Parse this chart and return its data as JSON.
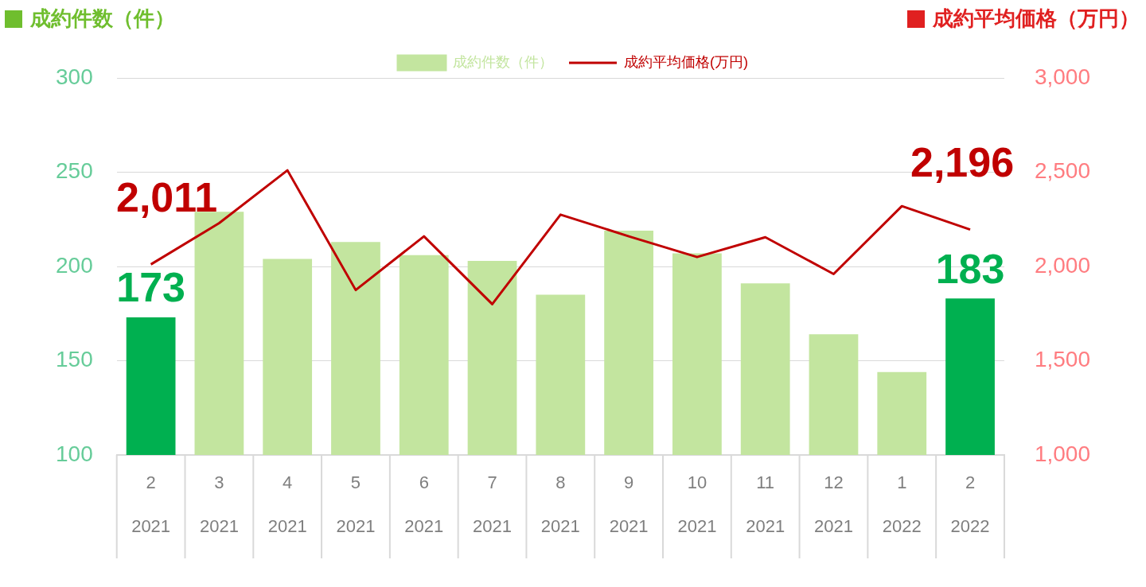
{
  "chart_data": {
    "type": "bar",
    "ylabel": "成約件数（件）",
    "y2label": "成約平均価格（万円）",
    "categories": [
      "2\n2021",
      "3\n2021",
      "4\n2021",
      "5\n2021",
      "6\n2021",
      "7\n2021",
      "8\n2021",
      "9\n2021",
      "10\n2021",
      "11\n2021",
      "12\n2021",
      "1\n2022",
      "2\n2022"
    ],
    "series": [
      {
        "name": "成約件数（件）",
        "color": "#c3e59f",
        "colors": [
          "#00b050",
          "#c3e59f",
          "#c3e59f",
          "#c3e59f",
          "#c3e59f",
          "#c3e59f",
          "#c3e59f",
          "#c3e59f",
          "#c3e59f",
          "#c3e59f",
          "#c3e59f",
          "#c3e59f",
          "#00b050"
        ],
        "values": [
          173,
          229,
          204,
          213,
          206,
          203,
          185,
          219,
          207,
          191,
          164,
          144,
          183
        ],
        "value_labels": [
          "173",
          null,
          null,
          null,
          null,
          null,
          null,
          null,
          null,
          null,
          null,
          null,
          "183"
        ]
      },
      {
        "name": "成約平均価格(万円)",
        "type": "line",
        "axis": "y2",
        "color": "#c00000",
        "values": [
          2011,
          2230,
          2510,
          1875,
          2160,
          1800,
          2275,
          2160,
          2050,
          2155,
          1960,
          2320,
          2196
        ],
        "value_labels": [
          "2,011",
          null,
          null,
          null,
          null,
          null,
          null,
          null,
          null,
          null,
          null,
          null,
          "2,196"
        ]
      }
    ],
    "ylim": [
      100,
      300
    ],
    "yticks": [
      100,
      150,
      200,
      250,
      300
    ],
    "y2lim": [
      1000,
      3000
    ],
    "y2ticks": [
      {
        "value": 1000,
        "label": "1,000"
      },
      {
        "value": 1500,
        "label": "1,500"
      },
      {
        "value": 2000,
        "label": "2,000"
      },
      {
        "value": 2500,
        "label": "2,500"
      },
      {
        "value": 3000,
        "label": "3,000"
      }
    ],
    "grid": "y",
    "legend": "top",
    "marker": "none"
  }
}
